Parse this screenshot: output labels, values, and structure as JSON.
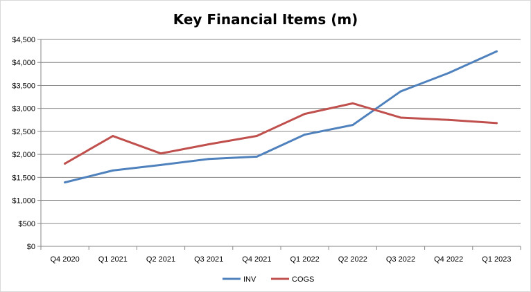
{
  "chart_data": {
    "type": "line",
    "title": "Key Financial Items (m)",
    "categories": [
      "Q4 2020",
      "Q1 2021",
      "Q2 2021",
      "Q3 2021",
      "Q4 2021",
      "Q1 2022",
      "Q2 2022",
      "Q3 2022",
      "Q4 2022",
      "Q1 2023"
    ],
    "series": [
      {
        "name": "INV",
        "color": "#4F81BD",
        "values": [
          1390,
          1650,
          1770,
          1900,
          1950,
          2430,
          2640,
          3370,
          3770,
          4240
        ]
      },
      {
        "name": "COGS",
        "color": "#C0504D",
        "values": [
          1800,
          2400,
          2020,
          2220,
          2400,
          2880,
          3110,
          2800,
          2750,
          2680
        ]
      }
    ],
    "ylim": [
      0,
      4500
    ],
    "yticks": [
      0,
      500,
      1000,
      1500,
      2000,
      2500,
      3000,
      3500,
      4000,
      4500
    ],
    "ytick_labels": [
      "$0",
      "$500",
      "$1,000",
      "$1,500",
      "$2,000",
      "$2,500",
      "$3,000",
      "$3,500",
      "$4,000",
      "$4,500"
    ],
    "xlabel": "",
    "ylabel": "",
    "grid": true,
    "legend_position": "bottom"
  }
}
